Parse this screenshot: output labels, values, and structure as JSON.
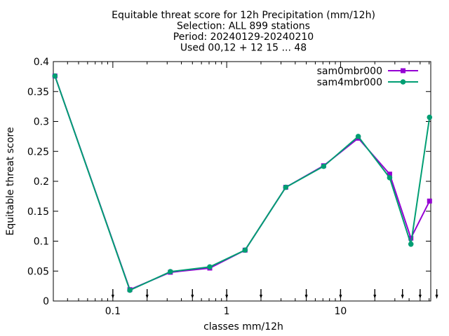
{
  "chart_data": {
    "type": "line",
    "title_lines": [
      "Equitable threat score  for 12h Precipitation (mm/12h)",
      "Selection: ALL     899 stations",
      "Period: 20240129-20240210",
      "Used 00,12 + 12 15 ... 48"
    ],
    "xlabel": "classes mm/12h",
    "ylabel": "Equitable threat score",
    "x_scale": "log",
    "xlim": [
      0.03,
      62
    ],
    "ylim": [
      0,
      0.4
    ],
    "x_ticks": [
      0.1,
      1,
      10
    ],
    "x_tick_labels": [
      "0.1",
      "1",
      "10"
    ],
    "y_ticks": [
      0,
      0.05,
      0.1,
      0.15,
      0.2,
      0.25,
      0.3,
      0.35,
      0.4
    ],
    "y_tick_labels": [
      "0",
      "0.05",
      "0.1",
      "0.15",
      "0.2",
      "0.25",
      "0.3",
      "0.35",
      "0.4"
    ],
    "threshold_markers": [
      0.1,
      0.2,
      0.5,
      1,
      2,
      5,
      10,
      20,
      35,
      50,
      70
    ],
    "legend_position": "top-right",
    "series": [
      {
        "name": "sam0mbr000",
        "color": "#9400d3",
        "marker": "square",
        "x": [
          0.031,
          0.141,
          0.32,
          0.71,
          1.45,
          3.3,
          7.1,
          14.3,
          27,
          41.5,
          60.5
        ],
        "y": [
          0.376,
          0.019,
          0.048,
          0.055,
          0.085,
          0.19,
          0.226,
          0.272,
          0.212,
          0.105,
          0.167
        ]
      },
      {
        "name": "sam4mbr000",
        "color": "#009e73",
        "marker": "circle",
        "x": [
          0.031,
          0.141,
          0.32,
          0.71,
          1.45,
          3.3,
          7.1,
          14.3,
          27,
          41.5,
          60.5
        ],
        "y": [
          0.376,
          0.018,
          0.049,
          0.057,
          0.085,
          0.19,
          0.225,
          0.275,
          0.206,
          0.095,
          0.307
        ]
      }
    ]
  }
}
